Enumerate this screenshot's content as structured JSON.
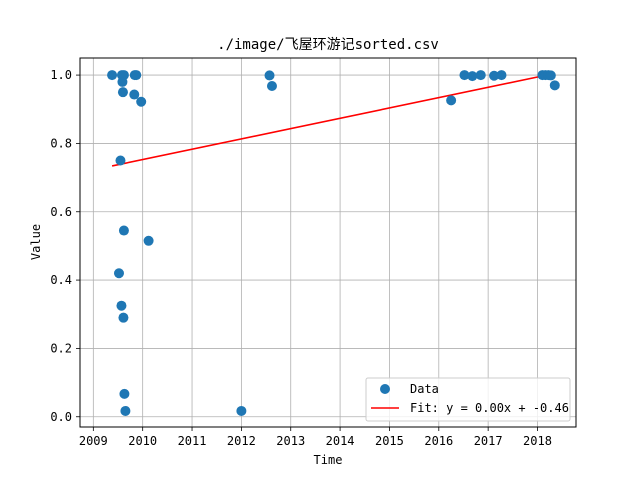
{
  "chart_data": {
    "type": "scatter",
    "title": "./image/飞屋环游记sorted.csv",
    "xlabel": "Time",
    "ylabel": "Value",
    "xlim": [
      2008.73,
      2018.78
    ],
    "ylim": [
      -0.03,
      1.05
    ],
    "x_ticks": [
      "2009",
      "2010",
      "2011",
      "2012",
      "2013",
      "2014",
      "2015",
      "2016",
      "2017",
      "2018"
    ],
    "y_ticks": [
      "0.0",
      "0.2",
      "0.4",
      "0.6",
      "0.8",
      "1.0"
    ],
    "grid": true,
    "legend_position": "lower-right",
    "series": [
      {
        "name": "Data",
        "kind": "scatter",
        "color": "#1f77b4",
        "points": [
          [
            2009.38,
            1.0
          ],
          [
            2009.52,
            0.42
          ],
          [
            2009.55,
            0.75
          ],
          [
            2009.57,
            0.325
          ],
          [
            2009.58,
            1.0
          ],
          [
            2009.59,
            0.98
          ],
          [
            2009.6,
            0.95
          ],
          [
            2009.61,
            0.29
          ],
          [
            2009.62,
            0.545
          ],
          [
            2009.62,
            1.0
          ],
          [
            2009.63,
            0.067
          ],
          [
            2009.65,
            0.017
          ],
          [
            2009.83,
            0.943
          ],
          [
            2009.84,
            1.0
          ],
          [
            2009.87,
            1.0
          ],
          [
            2009.97,
            0.922
          ],
          [
            2010.12,
            0.515
          ],
          [
            2012.0,
            0.017
          ],
          [
            2012.57,
            0.999
          ],
          [
            2012.62,
            0.968
          ],
          [
            2016.25,
            0.926
          ],
          [
            2016.52,
            1.0
          ],
          [
            2016.68,
            0.997
          ],
          [
            2016.85,
            1.0
          ],
          [
            2017.12,
            0.998
          ],
          [
            2017.27,
            1.0
          ],
          [
            2018.1,
            1.0
          ],
          [
            2018.16,
            1.0
          ],
          [
            2018.22,
            1.0
          ],
          [
            2018.27,
            0.999
          ],
          [
            2018.35,
            0.97
          ]
        ]
      },
      {
        "name": "Fit: y = 0.00x + -0.46",
        "kind": "line",
        "color": "#ff0000",
        "points": [
          [
            2009.38,
            0.734
          ],
          [
            2018.35,
            1.005
          ]
        ]
      }
    ]
  }
}
